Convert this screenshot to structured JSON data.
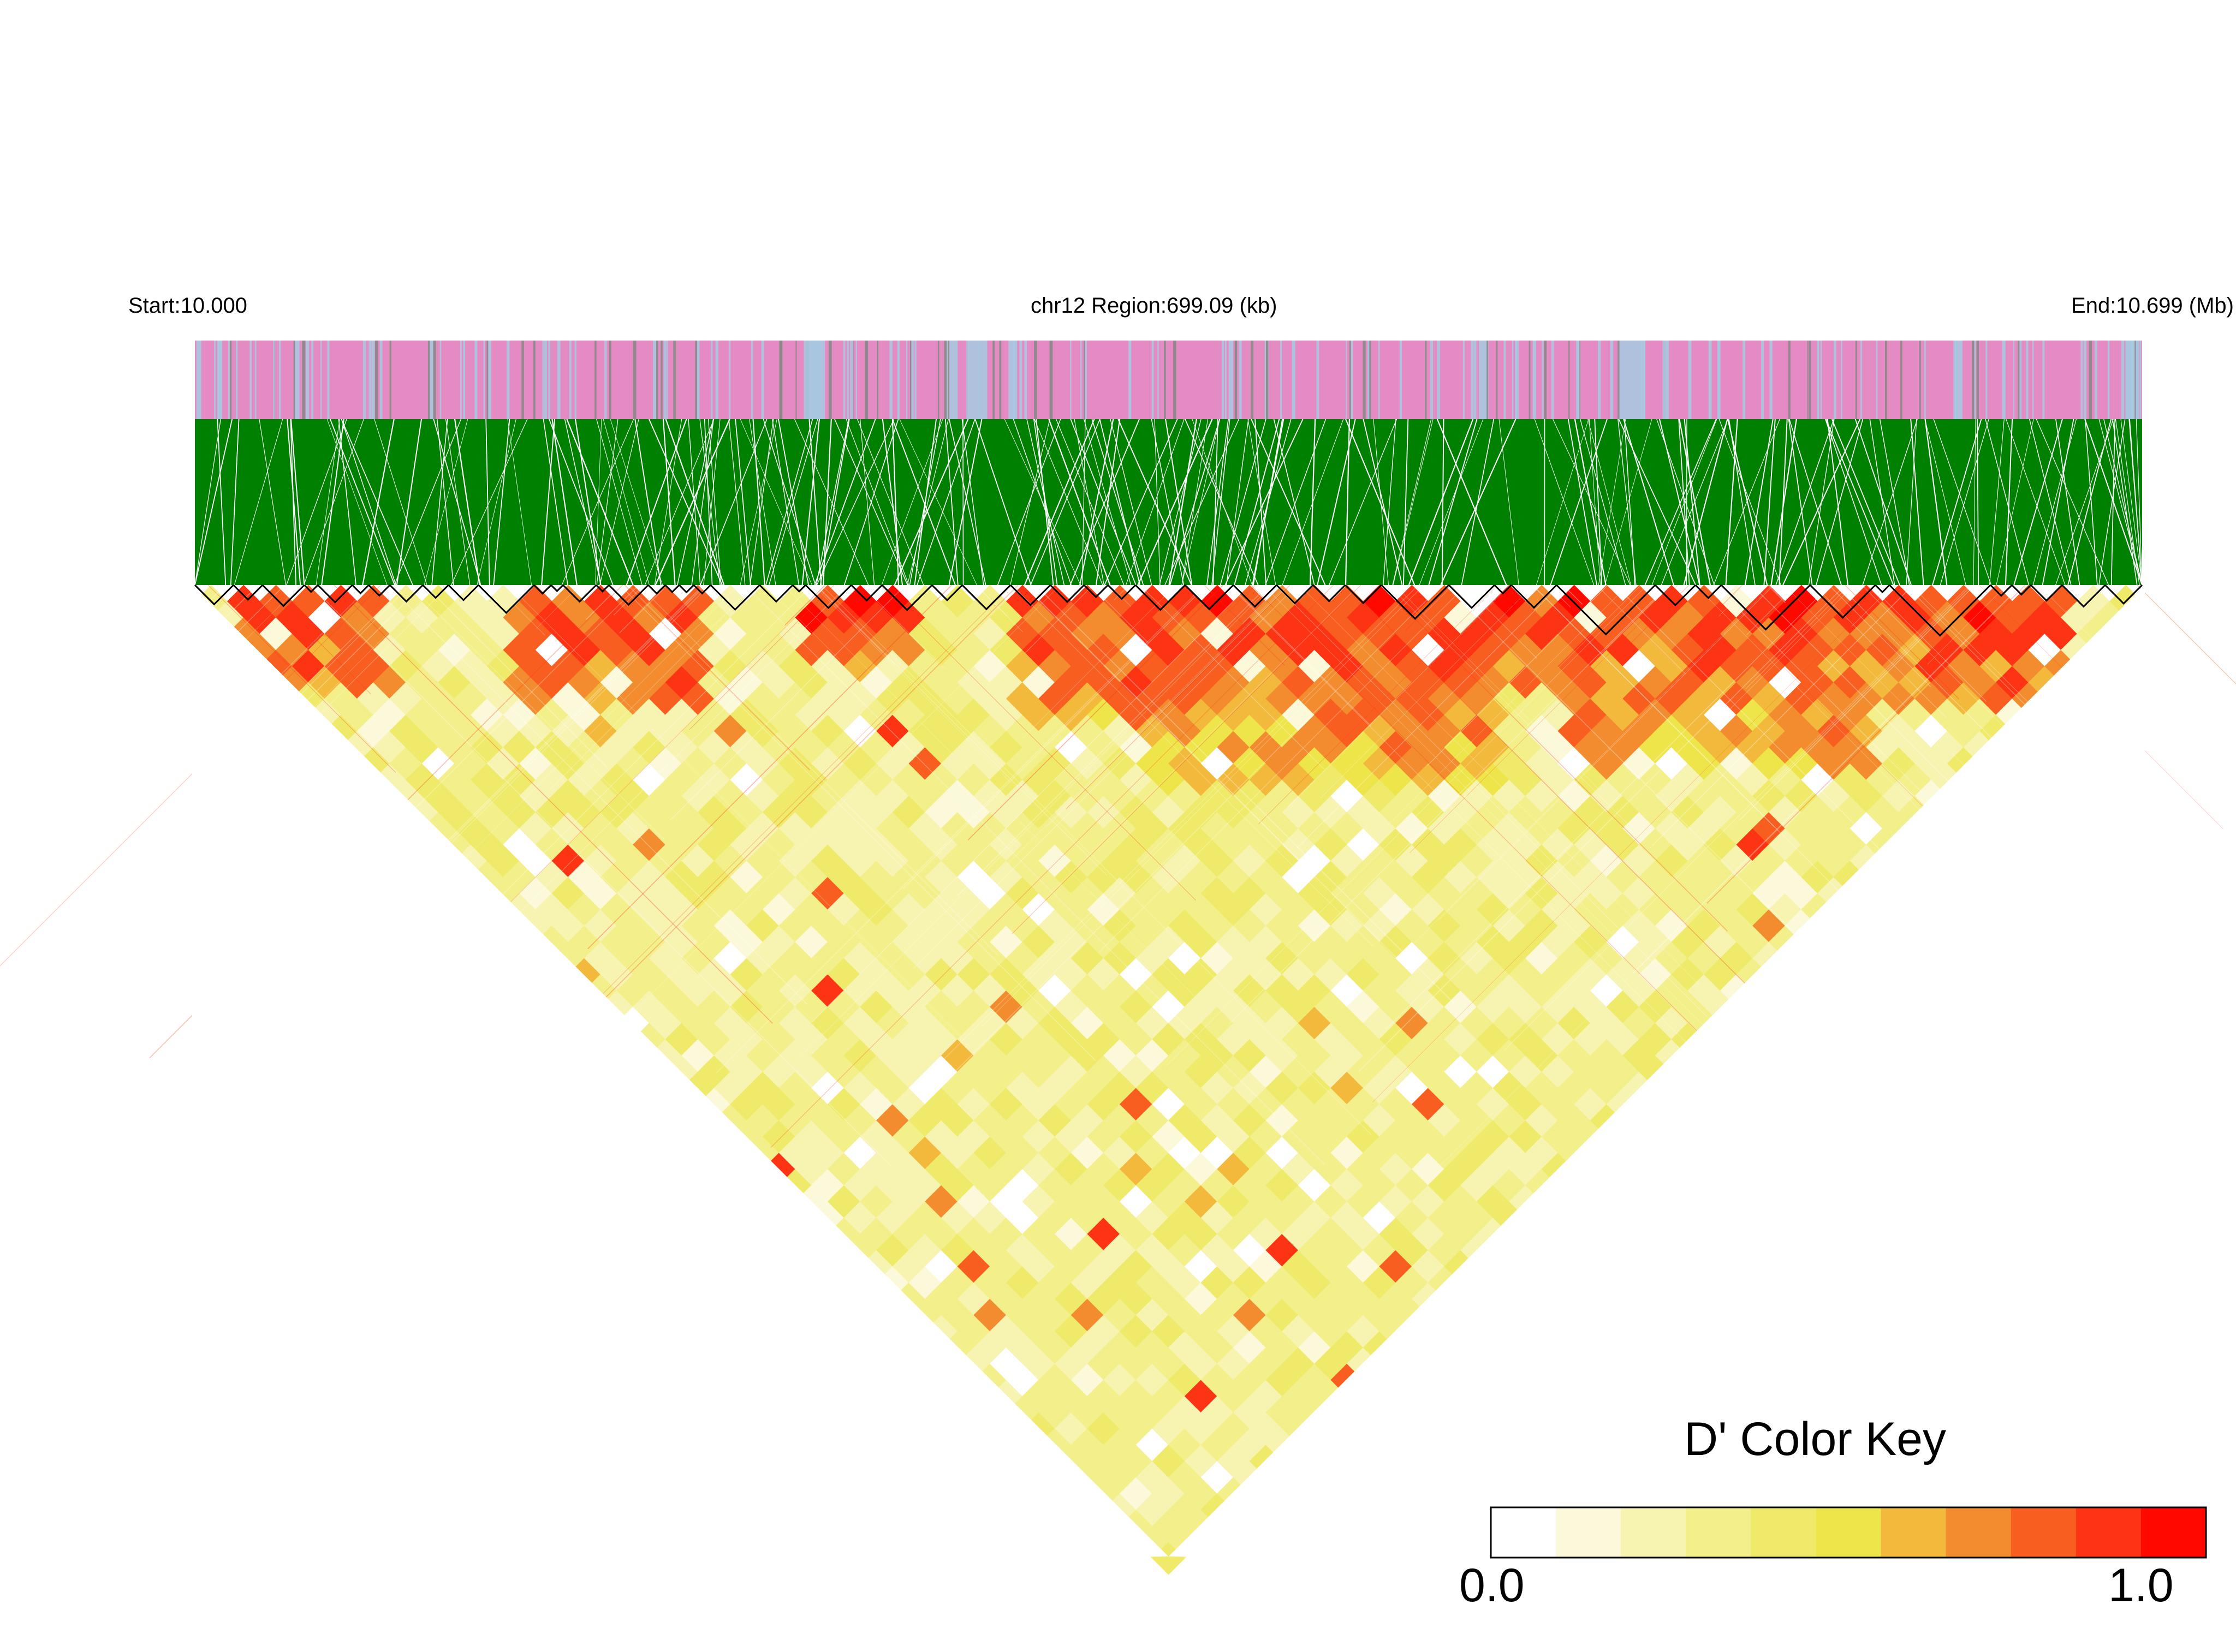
{
  "header": {
    "start_label": "Start:10.000",
    "region_label": "chr12 Region:699.09 (kb)",
    "end_label": "End:10.699 (Mb)"
  },
  "chart_data": {
    "type": "heatmap",
    "kind": "LD heatmap (triangle)",
    "chromosome": "chr12",
    "region_start_mb": 10.0,
    "region_end_mb": 10.699,
    "region_size_kb": 699.09,
    "tracks": [
      {
        "name": "gene track",
        "colors": [
          "#e48bc4",
          "#a9c6e0",
          "#888888"
        ]
      },
      {
        "name": "SNP position links",
        "color": "#008000"
      }
    ],
    "block_outline_color": "#000000",
    "color_key": {
      "title": "D' Color Key",
      "min_label": "0.0",
      "max_label": "1.0",
      "range": [
        0.0,
        1.0
      ],
      "bins": [
        "#ffffff",
        "#fbf9d9",
        "#f7f3b0",
        "#f3ef8a",
        "#efea6a",
        "#ede54a",
        "#f2b93c",
        "#f28c2e",
        "#f85e20",
        "#fc3414",
        "#fe0800"
      ]
    },
    "grid": false,
    "legend_position": "bottom-right"
  }
}
